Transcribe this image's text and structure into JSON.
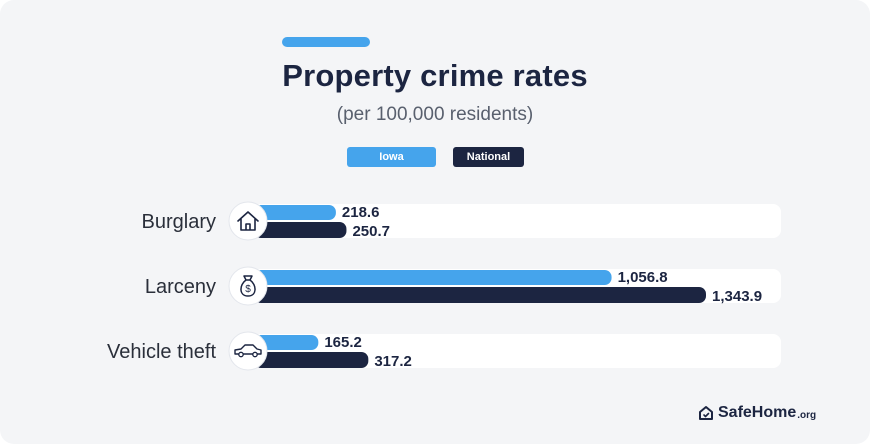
{
  "title": "Property crime rates",
  "subtitle": "(per 100,000 residents)",
  "brand": {
    "name": "SafeHome",
    "tld": ".org"
  },
  "colors": {
    "iowa": "#45a4ec",
    "national": "#1c2541",
    "track": "#ffffff",
    "accent": "#45a4ec"
  },
  "chart_data": {
    "type": "bar",
    "orientation": "horizontal",
    "title": "Property crime rates",
    "subtitle": "(per 100,000 residents)",
    "categories": [
      "Burglary",
      "Larceny",
      "Vehicle theft"
    ],
    "category_icons": [
      "house-icon",
      "money-bag-icon",
      "car-icon"
    ],
    "series": [
      {
        "name": "Iowa",
        "values": [
          218.6,
          1056.8,
          165.2
        ],
        "labels": [
          "218.6",
          "1,056.8",
          "165.2"
        ]
      },
      {
        "name": "National",
        "values": [
          250.7,
          1343.9,
          317.2
        ],
        "labels": [
          "250.7",
          "1,343.9",
          "317.2"
        ]
      }
    ],
    "legend_position": "top-center",
    "grid": false
  }
}
